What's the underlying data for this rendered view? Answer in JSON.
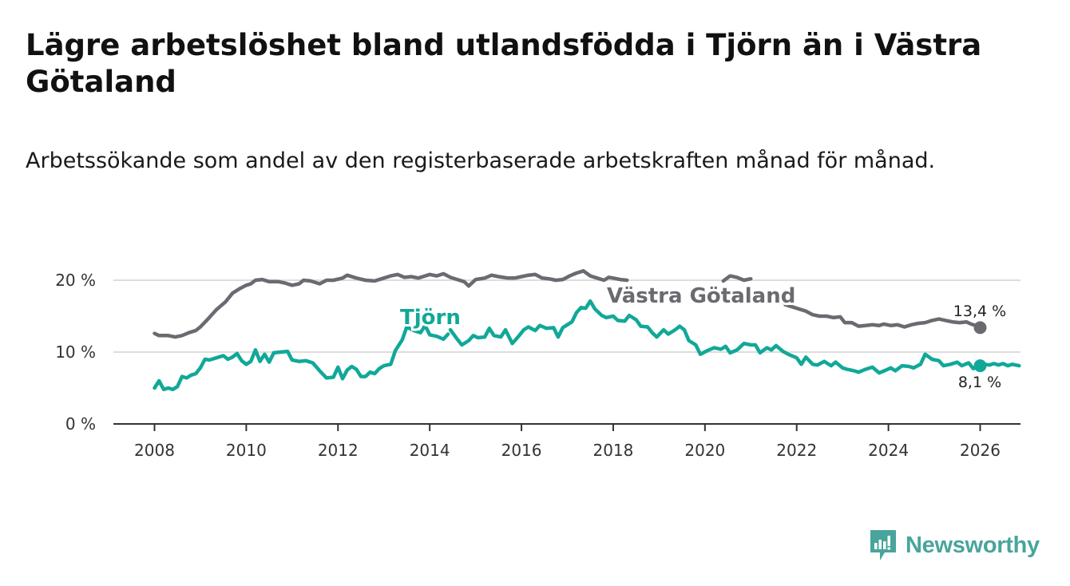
{
  "title": "Lägre arbetslöshet bland utlandsfödda i Tjörn än i Västra Götaland",
  "subtitle": "Arbetssökande som andel av den registerbaserade arbetskraften månad för månad.",
  "brand": {
    "name": "Newsworthy",
    "icon": "newsworthy-logo-icon"
  },
  "colors": {
    "tjorn": "#11a898",
    "vastra": "#6b6a70",
    "grid": "#dddddd",
    "axis": "#333333"
  },
  "chart_data": {
    "type": "line",
    "title": "Lägre arbetslöshet bland utlandsfödda i Tjörn än i Västra Götaland",
    "xlabel": "",
    "ylabel": "",
    "xlim": [
      2007.8,
      2026.9
    ],
    "ylim": [
      0,
      20
    ],
    "x_ticks": [
      "2008",
      "2010",
      "2012",
      "2014",
      "2016",
      "2018",
      "2020",
      "2022",
      "2024",
      "2026"
    ],
    "y_ticks": [
      "0 %",
      "10 %",
      "20 %"
    ],
    "y_tick_values": [
      0,
      10,
      20
    ],
    "grid": true,
    "series": [
      {
        "name": "Västra Götaland",
        "label": "Västra Götaland",
        "end_label": "13,4 %",
        "points": [
          [
            2008.0,
            12.6
          ],
          [
            2008.1,
            12.3
          ],
          [
            2008.3,
            12.3
          ],
          [
            2008.45,
            12.1
          ],
          [
            2008.6,
            12.3
          ],
          [
            2008.75,
            12.7
          ],
          [
            2008.9,
            13.0
          ],
          [
            2009.0,
            13.5
          ],
          [
            2009.15,
            14.5
          ],
          [
            2009.35,
            15.9
          ],
          [
            2009.55,
            17.0
          ],
          [
            2009.7,
            18.2
          ],
          [
            2009.85,
            18.8
          ],
          [
            2010.0,
            19.3
          ],
          [
            2010.1,
            19.5
          ],
          [
            2010.2,
            20.0
          ],
          [
            2010.35,
            20.1
          ],
          [
            2010.5,
            19.8
          ],
          [
            2010.7,
            19.8
          ],
          [
            2010.85,
            19.6
          ],
          [
            2011.0,
            19.3
          ],
          [
            2011.15,
            19.5
          ],
          [
            2011.25,
            20.0
          ],
          [
            2011.4,
            19.9
          ],
          [
            2011.6,
            19.5
          ],
          [
            2011.75,
            20.0
          ],
          [
            2011.9,
            20.0
          ],
          [
            2012.1,
            20.3
          ],
          [
            2012.2,
            20.7
          ],
          [
            2012.4,
            20.3
          ],
          [
            2012.6,
            20.0
          ],
          [
            2012.8,
            19.9
          ],
          [
            2013.0,
            20.3
          ],
          [
            2013.15,
            20.6
          ],
          [
            2013.3,
            20.8
          ],
          [
            2013.45,
            20.4
          ],
          [
            2013.6,
            20.5
          ],
          [
            2013.75,
            20.3
          ],
          [
            2013.9,
            20.6
          ],
          [
            2014.0,
            20.8
          ],
          [
            2014.15,
            20.6
          ],
          [
            2014.3,
            20.9
          ],
          [
            2014.45,
            20.4
          ],
          [
            2014.6,
            20.1
          ],
          [
            2014.75,
            19.8
          ],
          [
            2014.85,
            19.2
          ],
          [
            2015.0,
            20.1
          ],
          [
            2015.2,
            20.3
          ],
          [
            2015.35,
            20.7
          ],
          [
            2015.5,
            20.5
          ],
          [
            2015.7,
            20.3
          ],
          [
            2015.85,
            20.3
          ],
          [
            2016.0,
            20.5
          ],
          [
            2016.15,
            20.7
          ],
          [
            2016.3,
            20.8
          ],
          [
            2016.45,
            20.3
          ],
          [
            2016.6,
            20.2
          ],
          [
            2016.75,
            20.0
          ],
          [
            2016.9,
            20.1
          ],
          [
            2017.05,
            20.6
          ],
          [
            2017.2,
            21.0
          ],
          [
            2017.35,
            21.3
          ],
          [
            2017.5,
            20.6
          ],
          [
            2017.65,
            20.3
          ],
          [
            2017.8,
            20.0
          ],
          [
            2017.9,
            20.4
          ],
          [
            2018.0,
            20.3
          ],
          [
            2018.15,
            20.1
          ],
          [
            2018.3,
            20.0
          ]
        ],
        "points_2": [
          [
            2020.4,
            19.9
          ],
          [
            2020.55,
            20.6
          ],
          [
            2020.7,
            20.4
          ],
          [
            2020.85,
            20.0
          ],
          [
            2021.0,
            20.2
          ]
        ],
        "points_3": [
          [
            2021.75,
            16.6
          ],
          [
            2021.9,
            16.3
          ],
          [
            2022.05,
            16.0
          ],
          [
            2022.2,
            15.7
          ],
          [
            2022.35,
            15.2
          ],
          [
            2022.5,
            15.0
          ],
          [
            2022.65,
            15.0
          ],
          [
            2022.8,
            14.8
          ],
          [
            2022.95,
            14.9
          ],
          [
            2023.05,
            14.1
          ],
          [
            2023.2,
            14.1
          ],
          [
            2023.35,
            13.6
          ],
          [
            2023.5,
            13.7
          ],
          [
            2023.65,
            13.8
          ],
          [
            2023.8,
            13.7
          ],
          [
            2023.9,
            13.9
          ],
          [
            2024.05,
            13.7
          ],
          [
            2024.2,
            13.8
          ],
          [
            2024.35,
            13.5
          ],
          [
            2024.5,
            13.8
          ],
          [
            2024.65,
            14.0
          ],
          [
            2024.8,
            14.1
          ],
          [
            2024.95,
            14.4
          ],
          [
            2025.1,
            14.6
          ],
          [
            2025.25,
            14.4
          ],
          [
            2025.4,
            14.2
          ],
          [
            2025.55,
            14.1
          ],
          [
            2025.7,
            14.2
          ],
          [
            2025.8,
            13.9
          ],
          [
            2025.9,
            13.7
          ],
          [
            2026.0,
            13.4
          ]
        ]
      },
      {
        "name": "Tjörn",
        "label": "Tjörn",
        "end_label": "8,1 %",
        "points": [
          [
            2008.0,
            5.0
          ],
          [
            2008.1,
            6.0
          ],
          [
            2008.2,
            4.8
          ],
          [
            2008.3,
            5.0
          ],
          [
            2008.4,
            4.8
          ],
          [
            2008.5,
            5.2
          ],
          [
            2008.6,
            6.6
          ],
          [
            2008.7,
            6.4
          ],
          [
            2008.8,
            6.8
          ],
          [
            2008.9,
            7.0
          ],
          [
            2009.0,
            7.8
          ],
          [
            2009.1,
            9.0
          ],
          [
            2009.2,
            8.9
          ],
          [
            2009.35,
            9.2
          ],
          [
            2009.5,
            9.5
          ],
          [
            2009.6,
            9.0
          ],
          [
            2009.7,
            9.3
          ],
          [
            2009.8,
            9.8
          ],
          [
            2009.9,
            8.8
          ],
          [
            2010.0,
            8.3
          ],
          [
            2010.1,
            8.7
          ],
          [
            2010.2,
            10.3
          ],
          [
            2010.3,
            8.7
          ],
          [
            2010.4,
            9.7
          ],
          [
            2010.5,
            8.6
          ],
          [
            2010.6,
            9.9
          ],
          [
            2010.75,
            10.0
          ],
          [
            2010.9,
            10.1
          ],
          [
            2011.0,
            8.9
          ],
          [
            2011.15,
            8.7
          ],
          [
            2011.3,
            8.8
          ],
          [
            2011.45,
            8.5
          ],
          [
            2011.6,
            7.4
          ],
          [
            2011.75,
            6.4
          ],
          [
            2011.9,
            6.5
          ],
          [
            2012.0,
            7.9
          ],
          [
            2012.1,
            6.3
          ],
          [
            2012.2,
            7.5
          ],
          [
            2012.3,
            8.0
          ],
          [
            2012.4,
            7.6
          ],
          [
            2012.5,
            6.6
          ],
          [
            2012.6,
            6.6
          ],
          [
            2012.7,
            7.2
          ],
          [
            2012.8,
            7.0
          ],
          [
            2012.9,
            7.7
          ],
          [
            2013.0,
            8.1
          ],
          [
            2013.15,
            8.3
          ],
          [
            2013.25,
            10.2
          ],
          [
            2013.4,
            11.7
          ],
          [
            2013.5,
            13.5
          ],
          [
            2013.65,
            13.0
          ],
          [
            2013.8,
            12.7
          ],
          [
            2013.9,
            13.7
          ],
          [
            2014.0,
            12.4
          ],
          [
            2014.15,
            12.2
          ],
          [
            2014.3,
            11.8
          ],
          [
            2014.4,
            12.5
          ]
        ],
        "points_2": [
          [
            2014.45,
            13.1
          ],
          [
            2014.6,
            11.8
          ],
          [
            2014.7,
            11.0
          ],
          [
            2014.85,
            11.6
          ],
          [
            2014.95,
            12.3
          ],
          [
            2015.05,
            12.0
          ],
          [
            2015.2,
            12.1
          ],
          [
            2015.3,
            13.3
          ],
          [
            2015.4,
            12.3
          ],
          [
            2015.55,
            12.1
          ],
          [
            2015.65,
            13.1
          ],
          [
            2015.8,
            11.2
          ],
          [
            2015.95,
            12.3
          ],
          [
            2016.05,
            13.1
          ],
          [
            2016.15,
            13.5
          ],
          [
            2016.3,
            13.0
          ],
          [
            2016.4,
            13.7
          ],
          [
            2016.55,
            13.3
          ],
          [
            2016.7,
            13.4
          ],
          [
            2016.8,
            12.1
          ],
          [
            2016.9,
            13.4
          ],
          [
            2017.0,
            13.8
          ],
          [
            2017.1,
            14.2
          ],
          [
            2017.2,
            15.5
          ],
          [
            2017.3,
            16.2
          ],
          [
            2017.4,
            16.1
          ],
          [
            2017.5,
            17.1
          ],
          [
            2017.6,
            16.0
          ],
          [
            2017.75,
            15.1
          ],
          [
            2017.85,
            14.8
          ],
          [
            2018.0,
            15.0
          ],
          [
            2018.1,
            14.4
          ],
          [
            2018.25,
            14.3
          ],
          [
            2018.35,
            15.1
          ],
          [
            2018.5,
            14.5
          ],
          [
            2018.6,
            13.6
          ],
          [
            2018.75,
            13.5
          ],
          [
            2018.85,
            12.7
          ],
          [
            2018.95,
            12.1
          ],
          [
            2019.1,
            13.1
          ],
          [
            2019.2,
            12.5
          ],
          [
            2019.35,
            13.1
          ],
          [
            2019.45,
            13.6
          ],
          [
            2019.55,
            13.1
          ],
          [
            2019.65,
            11.6
          ],
          [
            2019.8,
            11.0
          ],
          [
            2019.9,
            9.7
          ],
          [
            2020.05,
            10.2
          ],
          [
            2020.2,
            10.6
          ],
          [
            2020.35,
            10.4
          ],
          [
            2020.45,
            10.8
          ],
          [
            2020.55,
            9.9
          ],
          [
            2020.7,
            10.3
          ],
          [
            2020.85,
            11.2
          ],
          [
            2021.0,
            11.0
          ],
          [
            2021.1,
            11.0
          ],
          [
            2021.2,
            9.9
          ],
          [
            2021.35,
            10.6
          ],
          [
            2021.45,
            10.3
          ],
          [
            2021.55,
            10.9
          ],
          [
            2021.7,
            10.1
          ],
          [
            2021.85,
            9.6
          ],
          [
            2022.0,
            9.2
          ],
          [
            2022.1,
            8.3
          ],
          [
            2022.2,
            9.3
          ],
          [
            2022.35,
            8.3
          ],
          [
            2022.45,
            8.2
          ],
          [
            2022.6,
            8.7
          ],
          [
            2022.75,
            8.1
          ],
          [
            2022.85,
            8.6
          ],
          [
            2023.0,
            7.8
          ],
          [
            2023.1,
            7.6
          ],
          [
            2023.25,
            7.4
          ],
          [
            2023.35,
            7.2
          ],
          [
            2023.5,
            7.6
          ],
          [
            2023.65,
            7.9
          ],
          [
            2023.8,
            7.1
          ],
          [
            2023.95,
            7.5
          ],
          [
            2024.05,
            7.8
          ],
          [
            2024.15,
            7.4
          ],
          [
            2024.3,
            8.1
          ],
          [
            2024.45,
            8.0
          ],
          [
            2024.55,
            7.8
          ],
          [
            2024.7,
            8.3
          ],
          [
            2024.8,
            9.7
          ],
          [
            2024.95,
            9.0
          ],
          [
            2025.1,
            8.8
          ],
          [
            2025.2,
            8.1
          ],
          [
            2025.35,
            8.3
          ],
          [
            2025.5,
            8.6
          ],
          [
            2025.6,
            8.1
          ],
          [
            2025.75,
            8.5
          ],
          [
            2025.85,
            7.7
          ],
          [
            2026.0,
            8.1
          ],
          [
            2026.1,
            8.3
          ],
          [
            2026.2,
            8.2
          ],
          [
            2026.3,
            8.4
          ],
          [
            2026.4,
            8.2
          ],
          [
            2026.5,
            8.4
          ],
          [
            2026.6,
            8.1
          ],
          [
            2026.7,
            8.3
          ],
          [
            2026.85,
            8.1
          ]
        ]
      }
    ]
  }
}
